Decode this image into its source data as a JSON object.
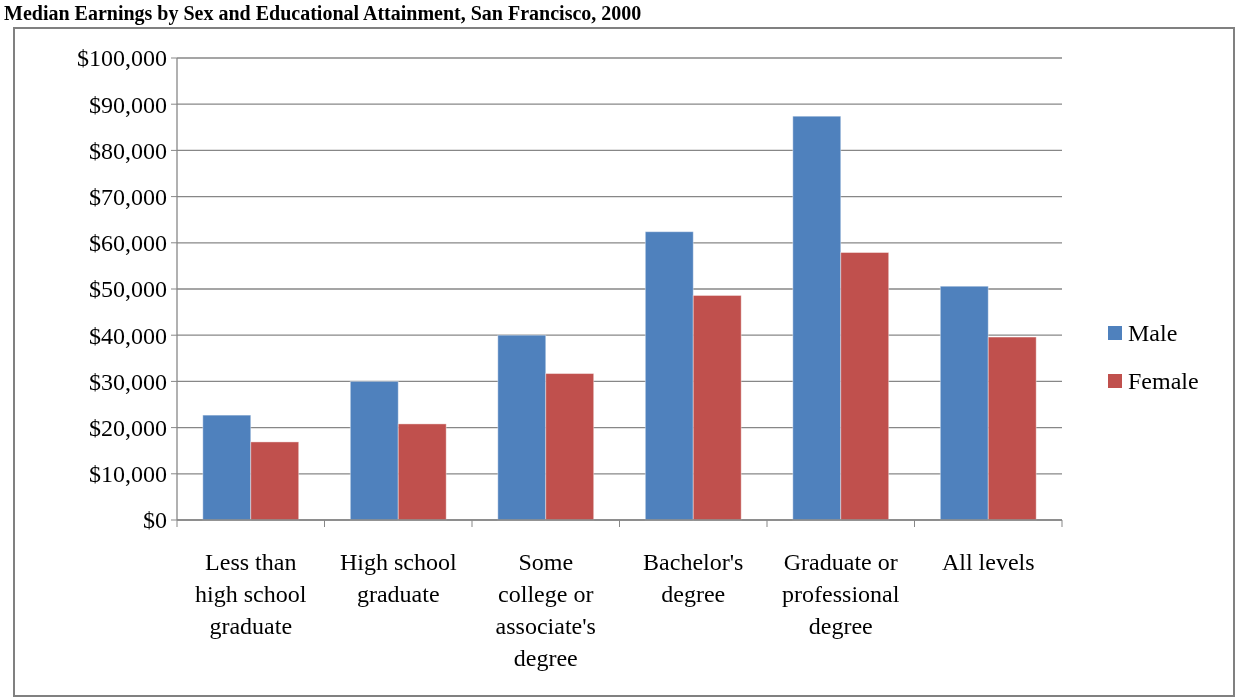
{
  "chart_data": {
    "type": "bar",
    "title": "Median Earnings by Sex and Educational Attainment, San Francisco, 2000",
    "categories": [
      "Less than high school graduate",
      "High school graduate",
      "Some college or associate's degree",
      "Bachelor's degree",
      "Graduate or professional degree",
      "All levels"
    ],
    "series": [
      {
        "name": "Male",
        "color": "#4f81bd",
        "values": [
          22700,
          30000,
          40000,
          62400,
          87400,
          50600
        ]
      },
      {
        "name": "Female",
        "color": "#c0504d",
        "values": [
          16900,
          20800,
          31700,
          48600,
          57900,
          39600
        ]
      }
    ],
    "ylim": [
      0,
      100000
    ],
    "yticks": [
      {
        "value": 0,
        "label": "$0"
      },
      {
        "value": 10000,
        "label": "$10,000"
      },
      {
        "value": 20000,
        "label": "$20,000"
      },
      {
        "value": 30000,
        "label": "$30,000"
      },
      {
        "value": 40000,
        "label": "$40,000"
      },
      {
        "value": 50000,
        "label": "$50,000"
      },
      {
        "value": 60000,
        "label": "$60,000"
      },
      {
        "value": 70000,
        "label": "$70,000"
      },
      {
        "value": 80000,
        "label": "$80,000"
      },
      {
        "value": 90000,
        "label": "$90,000"
      },
      {
        "value": 100000,
        "label": "$100,000"
      }
    ],
    "grid": "y",
    "legend": "right"
  }
}
